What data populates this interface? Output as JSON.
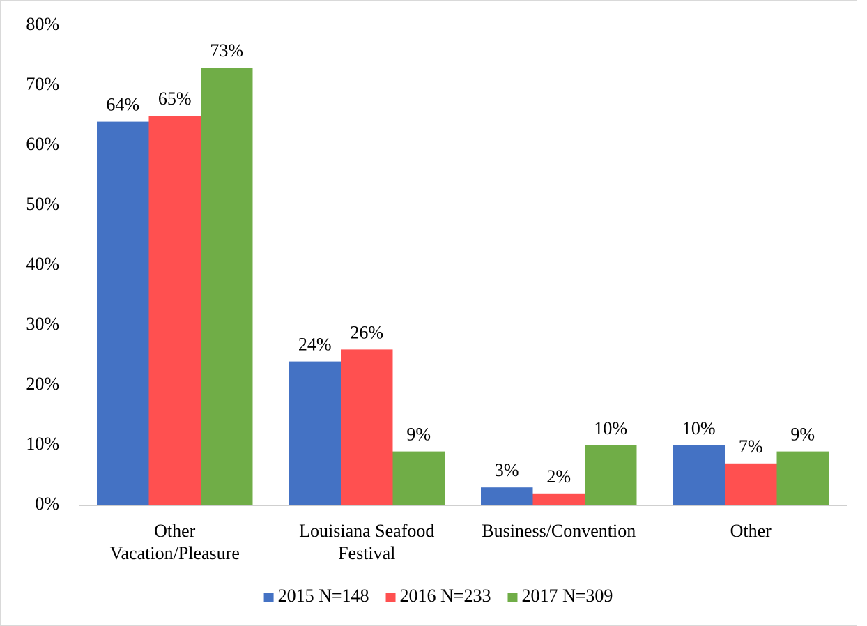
{
  "chart_data": {
    "type": "bar",
    "categories": [
      "Other Vacation/Pleasure",
      "Louisiana Seafood Festival",
      "Business/Convention",
      "Other"
    ],
    "series": [
      {
        "name": "2015 N=148",
        "color": "#4472c4",
        "values": [
          64,
          24,
          3,
          10
        ],
        "value_labels": [
          "64%",
          "24%",
          "3%",
          "10%"
        ]
      },
      {
        "name": "2016 N=233",
        "color": "#ff5050",
        "values": [
          65,
          26,
          2,
          7
        ],
        "value_labels": [
          "65%",
          "26%",
          "2%",
          "7%"
        ]
      },
      {
        "name": "2017 N=309",
        "color": "#70ad47",
        "values": [
          73,
          9,
          10,
          9
        ],
        "value_labels": [
          "73%",
          "9%",
          "10%",
          "9%"
        ]
      }
    ],
    "ylim": [
      0,
      80
    ],
    "yticks": [
      {
        "value": 0,
        "label": "0%"
      },
      {
        "value": 10,
        "label": "10%"
      },
      {
        "value": 20,
        "label": "20%"
      },
      {
        "value": 30,
        "label": "30%"
      },
      {
        "value": 40,
        "label": "40%"
      },
      {
        "value": 50,
        "label": "50%"
      },
      {
        "value": 60,
        "label": "60%"
      },
      {
        "value": 70,
        "label": "70%"
      },
      {
        "value": 80,
        "label": "80%"
      }
    ],
    "grid": false,
    "legend": "bottom"
  }
}
